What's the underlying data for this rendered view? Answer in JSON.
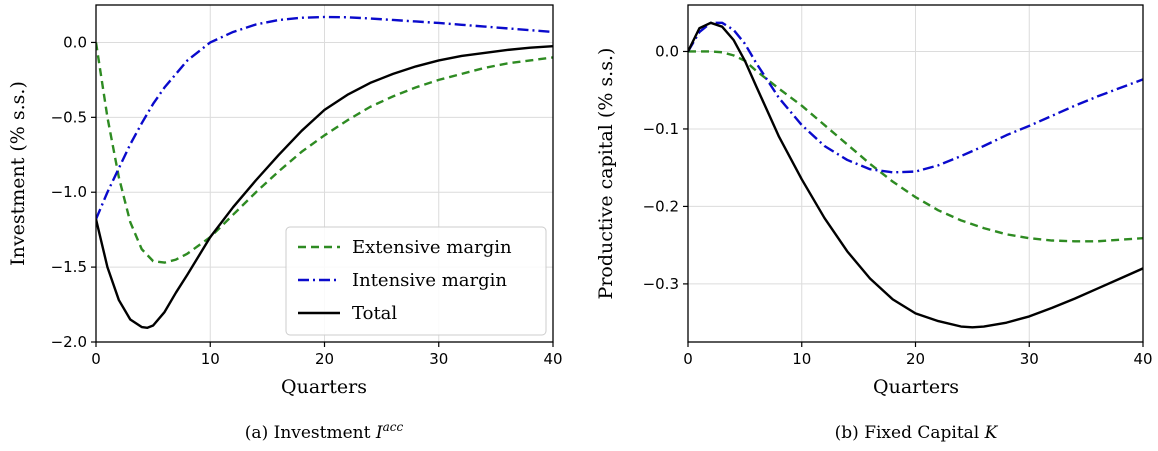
{
  "chart_data": [
    {
      "type": "line",
      "caption_prefix": "(a) Investment ",
      "caption_symbol": "I",
      "caption_sup": "acc",
      "xlabel": "Quarters",
      "ylabel": "Investment (% s.s.)",
      "xlim": [
        0,
        40
      ],
      "ylim": [
        -2.0,
        0.25
      ],
      "xticks": [
        0,
        10,
        20,
        30,
        40
      ],
      "xticklabels": [
        "0",
        "10",
        "20",
        "30",
        "40"
      ],
      "yticks": [
        0.0,
        -0.5,
        -1.0,
        -1.5,
        -2.0
      ],
      "yticklabels": [
        "0.0",
        "−0.5",
        "−1.0",
        "−1.5",
        "−2.0"
      ],
      "grid": true,
      "legend_position": "lower-right",
      "series": [
        {
          "name": "Extensive margin",
          "color": "#2e8b22",
          "style": "dashed",
          "x": [
            0,
            1,
            2,
            3,
            4,
            5,
            6,
            7,
            8,
            10,
            12,
            14,
            16,
            18,
            20,
            22,
            24,
            26,
            28,
            30,
            32,
            34,
            36,
            38,
            40
          ],
          "y": [
            0.0,
            -0.5,
            -0.9,
            -1.2,
            -1.38,
            -1.46,
            -1.47,
            -1.45,
            -1.41,
            -1.3,
            -1.15,
            -1.0,
            -0.86,
            -0.73,
            -0.62,
            -0.52,
            -0.43,
            -0.36,
            -0.3,
            -0.25,
            -0.21,
            -0.17,
            -0.14,
            -0.12,
            -0.1
          ]
        },
        {
          "name": "Intensive margin",
          "color": "#0a0acc",
          "style": "dashdot",
          "x": [
            0,
            1,
            2,
            3,
            4,
            5,
            6,
            8,
            10,
            12,
            14,
            16,
            18,
            20,
            22,
            24,
            26,
            28,
            30,
            32,
            34,
            36,
            38,
            40
          ],
          "y": [
            -1.18,
            -1.0,
            -0.84,
            -0.68,
            -0.54,
            -0.41,
            -0.3,
            -0.12,
            0.0,
            0.07,
            0.12,
            0.15,
            0.165,
            0.17,
            0.168,
            0.16,
            0.15,
            0.14,
            0.13,
            0.118,
            0.106,
            0.094,
            0.082,
            0.07
          ]
        },
        {
          "name": "Total",
          "color": "#000000",
          "style": "solid",
          "x": [
            0,
            1,
            2,
            3,
            4,
            4.5,
            5,
            6,
            7,
            8,
            10,
            12,
            14,
            16,
            18,
            20,
            22,
            24,
            26,
            28,
            30,
            32,
            34,
            36,
            38,
            40
          ],
          "y": [
            -1.18,
            -1.5,
            -1.72,
            -1.85,
            -1.9,
            -1.905,
            -1.89,
            -1.8,
            -1.67,
            -1.55,
            -1.3,
            -1.1,
            -0.92,
            -0.75,
            -0.59,
            -0.45,
            -0.35,
            -0.27,
            -0.21,
            -0.16,
            -0.12,
            -0.09,
            -0.07,
            -0.05,
            -0.035,
            -0.025
          ]
        }
      ]
    },
    {
      "type": "line",
      "caption_prefix": "(b) Fixed Capital ",
      "caption_symbol": "K",
      "caption_sup": "",
      "xlabel": "Quarters",
      "ylabel": "Productive capital (% s.s.)",
      "xlim": [
        0,
        40
      ],
      "ylim": [
        -0.375,
        0.06
      ],
      "xticks": [
        0,
        10,
        20,
        30,
        40
      ],
      "xticklabels": [
        "0",
        "10",
        "20",
        "30",
        "40"
      ],
      "yticks": [
        0.0,
        -0.1,
        -0.2,
        -0.3
      ],
      "yticklabels": [
        "0.0",
        "−0.1",
        "−0.2",
        "−0.3"
      ],
      "grid": true,
      "legend_position": "none",
      "series": [
        {
          "name": "",
          "color": "#2e8b22",
          "style": "dashed",
          "x": [
            0,
            1,
            2,
            3,
            4,
            5,
            6,
            8,
            10,
            12,
            14,
            16,
            18,
            20,
            22,
            24,
            26,
            28,
            30,
            32,
            34,
            36,
            38,
            40
          ],
          "y": [
            0.0,
            0.0,
            0.0,
            -0.001,
            -0.005,
            -0.012,
            -0.025,
            -0.048,
            -0.07,
            -0.095,
            -0.12,
            -0.145,
            -0.168,
            -0.188,
            -0.205,
            -0.218,
            -0.228,
            -0.236,
            -0.241,
            -0.244,
            -0.245,
            -0.245,
            -0.243,
            -0.241
          ]
        },
        {
          "name": "",
          "color": "#0a0acc",
          "style": "dashdot",
          "x": [
            0,
            1,
            2,
            3,
            4,
            5,
            6,
            8,
            10,
            12,
            14,
            16,
            18,
            20,
            22,
            24,
            26,
            28,
            30,
            32,
            34,
            36,
            38,
            40
          ],
          "y": [
            0.0,
            0.025,
            0.037,
            0.037,
            0.028,
            0.01,
            -0.015,
            -0.06,
            -0.095,
            -0.122,
            -0.14,
            -0.152,
            -0.156,
            -0.155,
            -0.147,
            -0.135,
            -0.122,
            -0.108,
            -0.096,
            -0.083,
            -0.07,
            -0.058,
            -0.047,
            -0.036
          ]
        },
        {
          "name": "",
          "color": "#000000",
          "style": "solid",
          "x": [
            0,
            1,
            2,
            3,
            4,
            5,
            6,
            8,
            10,
            12,
            14,
            16,
            18,
            20,
            22,
            24,
            25,
            26,
            28,
            30,
            32,
            34,
            36,
            38,
            40
          ],
          "y": [
            0.0,
            0.03,
            0.037,
            0.032,
            0.015,
            -0.012,
            -0.045,
            -0.11,
            -0.165,
            -0.215,
            -0.258,
            -0.293,
            -0.32,
            -0.338,
            -0.348,
            -0.355,
            -0.356,
            -0.355,
            -0.35,
            -0.342,
            -0.331,
            -0.319,
            -0.306,
            -0.293,
            -0.28
          ]
        }
      ]
    }
  ]
}
